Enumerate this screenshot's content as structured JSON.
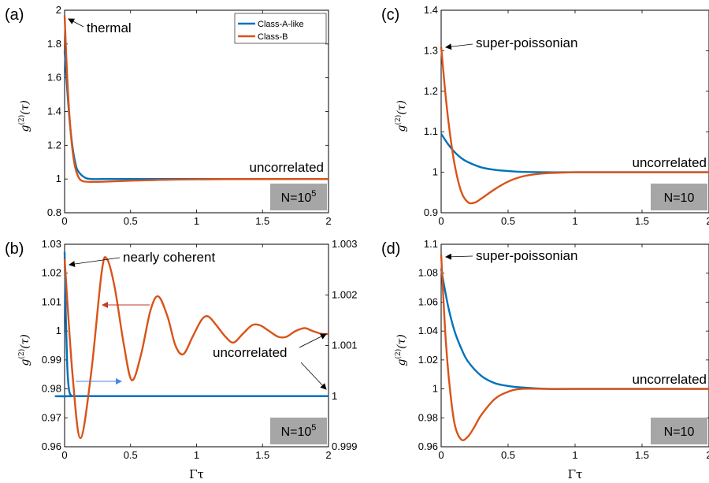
{
  "colors": {
    "class_a": "#0072BD",
    "class_b": "#D95319",
    "badge": "#a6a6a6",
    "red_arrow": "#c0392b",
    "blue_arrow": "#4a86e8"
  },
  "x_axis_label": "Γτ",
  "y_axis_label": "g(2)(τ)",
  "legend": [
    "Class-A-like",
    "Class-B"
  ],
  "chart_data": [
    {
      "panel": "(a)",
      "type": "line",
      "xlim": [
        0,
        2
      ],
      "ylim": [
        0.8,
        2
      ],
      "xticks": [
        "0",
        "0.5",
        "1",
        "1.5",
        "2"
      ],
      "yticks": [
        "0.8",
        "1",
        "1.2",
        "1.4",
        "1.6",
        "1.8",
        "2"
      ],
      "ylabel": "g(2)(τ)",
      "xlabel": "",
      "annotations": [
        "thermal",
        "uncorrelated"
      ],
      "badge": "N=10^5",
      "legend": [
        "Class-A-like",
        "Class-B"
      ],
      "series": [
        {
          "name": "Class-A-like",
          "x": [
            0,
            0.02,
            0.04,
            0.06,
            0.08,
            0.1,
            0.15,
            0.2,
            0.3,
            0.5,
            1,
            2
          ],
          "y": [
            1.76,
            1.53,
            1.33,
            1.19,
            1.1,
            1.05,
            1.01,
            1.0,
            1.0,
            1.0,
            1.0,
            1.0
          ]
        },
        {
          "name": "Class-B",
          "x": [
            0,
            0.02,
            0.04,
            0.06,
            0.08,
            0.1,
            0.12,
            0.15,
            0.2,
            0.3,
            0.5,
            0.8,
            1.2,
            2
          ],
          "y": [
            1.97,
            1.6,
            1.34,
            1.17,
            1.07,
            1.02,
            0.995,
            0.985,
            0.983,
            0.984,
            0.99,
            0.996,
            0.999,
            1.0
          ]
        }
      ]
    },
    {
      "panel": "(b)",
      "type": "line",
      "xlim": [
        0,
        2
      ],
      "ylim": [
        0.96,
        1.03
      ],
      "y2lim": [
        0.999,
        1.003
      ],
      "xticks": [
        "0",
        "0.5",
        "1",
        "1.5",
        "2"
      ],
      "yticks": [
        "0.96",
        "0.97",
        "0.98",
        "0.99",
        "1",
        "1.01",
        "1.02",
        "1.03"
      ],
      "y2ticks": [
        "0.999",
        "1",
        "1.001",
        "1.002",
        "1.003"
      ],
      "ylabel": "g(2)(τ)",
      "xlabel": "Γτ",
      "annotations": [
        "nearly coherent",
        "uncorrelated"
      ],
      "badge": "N=10^5",
      "series": [
        {
          "name": "Class-A-like",
          "axis": "right",
          "x": [
            0,
            0.01,
            0.02,
            0.03,
            0.04,
            0.06,
            0.08,
            2
          ],
          "y": [
            1.00285,
            1.0015,
            1.0006,
            1.0002,
            1.00005,
            1.0,
            1.0,
            1.0
          ]
        },
        {
          "name": "Class-B",
          "axis": "left",
          "x": [
            0,
            0.06,
            0.12,
            0.2,
            0.28,
            0.32,
            0.38,
            0.45,
            0.51,
            0.58,
            0.65,
            0.71,
            0.78,
            0.84,
            0.9,
            0.97,
            1.04,
            1.09,
            1.15,
            1.22,
            1.28,
            1.35,
            1.42,
            1.48,
            1.55,
            1.62,
            1.68,
            1.75,
            1.82,
            1.88,
            1.95,
            2.0
          ],
          "y": [
            1.025,
            0.985,
            0.963,
            0.985,
            1.02,
            1.025,
            1.015,
            0.995,
            0.983,
            0.992,
            1.007,
            1.012,
            1.005,
            0.995,
            0.992,
            0.998,
            1.004,
            1.005,
            1.002,
            0.998,
            0.996,
            0.999,
            1.002,
            1.002,
            1.0,
            0.998,
            0.998,
            1.0,
            1.001,
            1.0,
            0.999,
            0.999
          ]
        }
      ]
    },
    {
      "panel": "(c)",
      "type": "line",
      "xlim": [
        0,
        2
      ],
      "ylim": [
        0.9,
        1.4
      ],
      "xticks": [
        "0",
        "0.5",
        "1",
        "1.5",
        "2"
      ],
      "yticks": [
        "0.9",
        "1",
        "1.1",
        "1.2",
        "1.3",
        "1.4"
      ],
      "ylabel": "g(2)(τ)",
      "xlabel": "",
      "annotations": [
        "super-poissonian",
        "uncorrelated"
      ],
      "badge": "N=10",
      "series": [
        {
          "name": "Class-A-like",
          "x": [
            0,
            0.05,
            0.1,
            0.15,
            0.2,
            0.3,
            0.4,
            0.5,
            0.6,
            0.8,
            1,
            2
          ],
          "y": [
            1.095,
            1.07,
            1.05,
            1.035,
            1.025,
            1.012,
            1.006,
            1.003,
            1.001,
            1.0,
            1.0,
            1.0
          ]
        },
        {
          "name": "Class-B",
          "x": [
            0,
            0.03,
            0.06,
            0.1,
            0.15,
            0.2,
            0.25,
            0.3,
            0.4,
            0.5,
            0.6,
            0.7,
            0.8,
            0.9,
            1.0,
            1.2,
            2
          ],
          "y": [
            1.31,
            1.2,
            1.11,
            1.02,
            0.952,
            0.926,
            0.925,
            0.935,
            0.958,
            0.977,
            0.989,
            0.995,
            0.998,
            0.999,
            1.0,
            1.0,
            1.0
          ]
        }
      ]
    },
    {
      "panel": "(d)",
      "type": "line",
      "xlim": [
        0,
        2
      ],
      "ylim": [
        0.96,
        1.1
      ],
      "xticks": [
        "0",
        "0.5",
        "1",
        "1.5",
        "2"
      ],
      "yticks": [
        "0.96",
        "0.98",
        "1",
        "1.02",
        "1.04",
        "1.06",
        "1.08",
        "1.1"
      ],
      "ylabel": "g(2)(τ)",
      "xlabel": "Γτ",
      "annotations": [
        "super-poissonian",
        "uncorrelated"
      ],
      "badge": "N=10",
      "series": [
        {
          "name": "Class-A-like",
          "x": [
            0,
            0.05,
            0.1,
            0.15,
            0.2,
            0.3,
            0.4,
            0.5,
            0.6,
            0.8,
            1,
            2
          ],
          "y": [
            1.083,
            1.058,
            1.04,
            1.028,
            1.019,
            1.009,
            1.004,
            1.002,
            1.001,
            1.0,
            1.0,
            1.0
          ]
        },
        {
          "name": "Class-B",
          "x": [
            0,
            0.03,
            0.06,
            0.1,
            0.15,
            0.2,
            0.25,
            0.3,
            0.4,
            0.5,
            0.6,
            0.8,
            1.0,
            2
          ],
          "y": [
            1.093,
            1.04,
            1.005,
            0.976,
            0.965,
            0.967,
            0.974,
            0.982,
            0.993,
            0.998,
            1.0,
            1.0,
            1.0,
            1.0
          ]
        }
      ]
    }
  ]
}
